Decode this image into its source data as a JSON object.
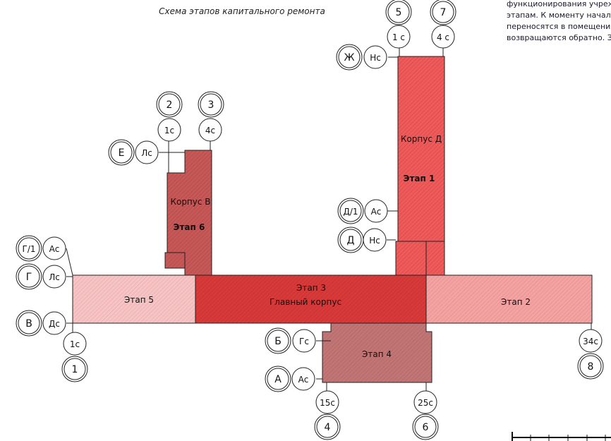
{
  "title": "Схема этапов капитального ремонта",
  "notes": [
    "функционирования учреж",
    "этапам. К моменту начал",
    "переносятся в помещения",
    "возвращаются обратно. З"
  ],
  "buildings": {
    "d_label": "Корпус Д",
    "d_stage": "Этап 1",
    "v_label": "Корпус В",
    "v_stage": "Этап 6",
    "main_stage": "Этап 3",
    "main_label": "Главный корпус",
    "stage2": "Этап 2",
    "stage4": "Этап 4",
    "stage5": "Этап 5"
  },
  "axes": {
    "top_v": {
      "num1": "2",
      "num2": "3",
      "col1": "1с",
      "col2": "4с",
      "row_letter": "Е",
      "row_code": "Лс"
    },
    "top_d": {
      "num1": "5",
      "num2": "7",
      "col1": "1 с",
      "col2": "4 с",
      "row_letter": "Ж",
      "row_code": "Нс"
    },
    "d_rows": [
      {
        "letter": "Д/1",
        "code": "Ас"
      },
      {
        "letter": "Д",
        "code": "Нс"
      }
    ],
    "left_rows": [
      {
        "letter": "Г/1",
        "code": "Ас"
      },
      {
        "letter": "Г",
        "code": "Лс"
      },
      {
        "letter": "В",
        "code": "Дс"
      }
    ],
    "bottom_left": {
      "col": "1с",
      "num": "1"
    },
    "bottom_mid_rows": [
      {
        "letter": "Б",
        "code": "Гс"
      },
      {
        "letter": "А",
        "code": "Ас"
      }
    ],
    "bottom_cols": [
      {
        "col": "15с",
        "num": "4"
      },
      {
        "col": "25с",
        "num": "6"
      }
    ],
    "right_col": {
      "col": "34с",
      "num": "8"
    }
  },
  "colors": {
    "stage1": "#ef5a5a",
    "stage2": "#f5a0a0",
    "stage3": "#d83a3a",
    "stage4": "#c47070",
    "stage5": "#f2b8b8",
    "stage6": "#c55555"
  }
}
